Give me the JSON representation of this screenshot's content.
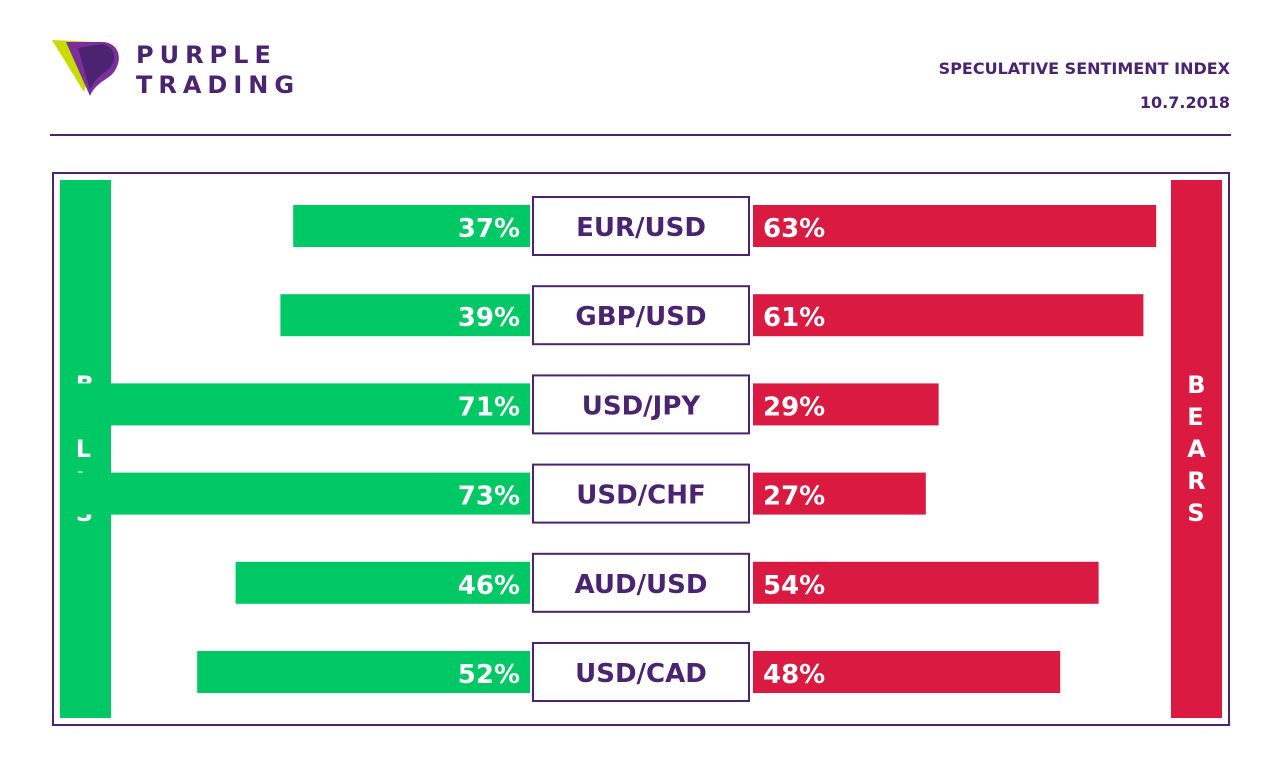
{
  "brand": {
    "line1": "PURPLE",
    "line2": "TRADING",
    "colors": {
      "purple": "#4a2371",
      "lime": "#c8dc00"
    }
  },
  "header": {
    "title": "SPECULATIVE SENTIMENT INDEX",
    "date": "10.7.2018"
  },
  "sides": {
    "left": "BULLS",
    "right": "BEARS"
  },
  "chart_data": {
    "type": "bar",
    "categories": [
      "EUR/USD",
      "GBP/USD",
      "USD/JPY",
      "USD/CHF",
      "AUD/USD",
      "USD/CAD"
    ],
    "series": [
      {
        "name": "BULLS",
        "values": [
          37,
          39,
          71,
          73,
          46,
          52
        ],
        "labels": [
          "37%",
          "39%",
          "71%",
          "73%",
          "46%",
          "52%"
        ],
        "color": "#00c865"
      },
      {
        "name": "BEARS",
        "values": [
          63,
          61,
          29,
          27,
          54,
          48
        ],
        "labels": [
          "63%",
          "61%",
          "29%",
          "27%",
          "54%",
          "48%"
        ],
        "color": "#da1a40"
      }
    ],
    "ylim": [
      0,
      100
    ]
  }
}
